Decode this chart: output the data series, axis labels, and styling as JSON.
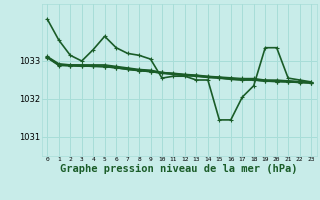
{
  "background_color": "#c8ece9",
  "grid_color": "#a8ddd8",
  "line_color": "#1a5c28",
  "xlabel": "Graphe pression niveau de la mer (hPa)",
  "xlabel_fontsize": 7.5,
  "ytick_labels": [
    "1031",
    "1032",
    "1033"
  ],
  "yticks": [
    1031,
    1032,
    1033
  ],
  "xlim": [
    -0.5,
    23.5
  ],
  "ylim": [
    1030.5,
    1034.5
  ],
  "series": [
    {
      "x": [
        0,
        1,
        2,
        3,
        4,
        5,
        6,
        7,
        8,
        9,
        10,
        11,
        12,
        13,
        14,
        15,
        16,
        17,
        18,
        19,
        20,
        21,
        22,
        23
      ],
      "y": [
        1034.1,
        1033.55,
        1033.15,
        1033.0,
        1033.3,
        1033.65,
        1033.35,
        1033.2,
        1033.15,
        1033.05,
        1032.55,
        1032.6,
        1032.6,
        1032.5,
        1032.5,
        1031.45,
        1031.45,
        1032.05,
        1032.35,
        1033.35,
        1033.35,
        1032.55,
        1032.5,
        1032.45
      ],
      "lw": 1.2
    },
    {
      "x": [
        0,
        1,
        2,
        3,
        4,
        5,
        6,
        7,
        8,
        9,
        10,
        11,
        12,
        13,
        14,
        15,
        16,
        17,
        18,
        19,
        20,
        21,
        22,
        23
      ],
      "y": [
        1033.1,
        1032.9,
        1032.88,
        1032.87,
        1032.86,
        1032.85,
        1032.82,
        1032.78,
        1032.75,
        1032.72,
        1032.68,
        1032.65,
        1032.62,
        1032.6,
        1032.57,
        1032.55,
        1032.52,
        1032.5,
        1032.5,
        1032.47,
        1032.46,
        1032.45,
        1032.44,
        1032.42
      ],
      "lw": 1.2
    },
    {
      "x": [
        0,
        1,
        2,
        3,
        4,
        5,
        6,
        7,
        8,
        9,
        10,
        11,
        12,
        13,
        14,
        15,
        16,
        17,
        18,
        19,
        20,
        21,
        22,
        23
      ],
      "y": [
        1033.08,
        1032.88,
        1032.87,
        1032.86,
        1032.86,
        1032.85,
        1032.82,
        1032.78,
        1032.74,
        1032.72,
        1032.68,
        1032.65,
        1032.62,
        1032.6,
        1032.57,
        1032.55,
        1032.52,
        1032.5,
        1032.5,
        1032.47,
        1032.46,
        1032.45,
        1032.43,
        1032.42
      ],
      "lw": 1.0
    },
    {
      "x": [
        0,
        1,
        2,
        3,
        4,
        5,
        6,
        7,
        8,
        9,
        10,
        11,
        12,
        13,
        14,
        15,
        16,
        17,
        18,
        19,
        20,
        21,
        22,
        23
      ],
      "y": [
        1033.12,
        1032.93,
        1032.9,
        1032.9,
        1032.9,
        1032.9,
        1032.86,
        1032.82,
        1032.78,
        1032.76,
        1032.7,
        1032.68,
        1032.65,
        1032.63,
        1032.6,
        1032.58,
        1032.56,
        1032.54,
        1032.54,
        1032.5,
        1032.5,
        1032.48,
        1032.46,
        1032.44
      ],
      "lw": 1.0
    },
    {
      "x": [
        0,
        1,
        2,
        3,
        4,
        5,
        6,
        7,
        8,
        9,
        10,
        11,
        12,
        13,
        14,
        15,
        16,
        17,
        18,
        19,
        20,
        21,
        22,
        23
      ],
      "y": [
        1033.1,
        1032.9,
        1032.9,
        1032.89,
        1032.88,
        1032.87,
        1032.84,
        1032.8,
        1032.76,
        1032.74,
        1032.7,
        1032.67,
        1032.64,
        1032.62,
        1032.59,
        1032.57,
        1032.54,
        1032.52,
        1032.52,
        1032.49,
        1032.48,
        1032.47,
        1032.45,
        1032.43
      ],
      "lw": 1.0
    }
  ]
}
